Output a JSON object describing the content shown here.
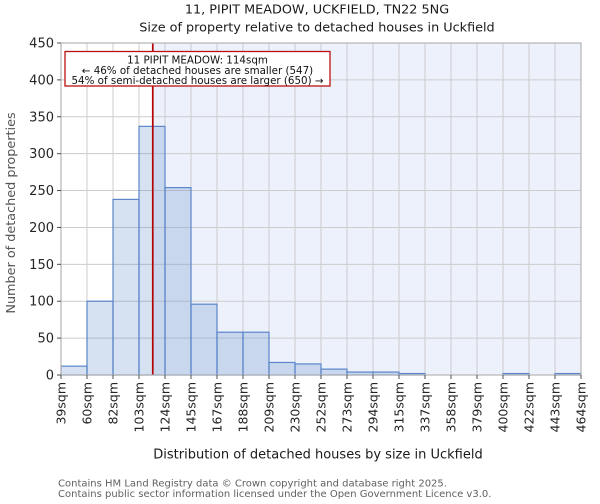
{
  "chart_data": {
    "type": "bar",
    "subtype": "histogram",
    "title": "11, PIPIT MEADOW, UCKFIELD, TN22 5NG",
    "subtitle": "Size of property relative to detached houses in Uckfield",
    "xlabel": "Distribution of detached houses by size in Uckfield",
    "ylabel": "Number of detached properties",
    "ylim": [
      0,
      450
    ],
    "y_tick_values": [
      0,
      50,
      100,
      150,
      200,
      250,
      300,
      350,
      400,
      450
    ],
    "grid": true,
    "bin_edges_sqm": [
      39,
      60,
      82,
      103,
      124,
      145,
      167,
      188,
      209,
      230,
      252,
      273,
      294,
      315,
      337,
      358,
      379,
      400,
      422,
      443,
      464
    ],
    "x_tick_labels": [
      "39sqm",
      "60sqm",
      "82sqm",
      "103sqm",
      "124sqm",
      "145sqm",
      "167sqm",
      "188sqm",
      "209sqm",
      "230sqm",
      "252sqm",
      "273sqm",
      "294sqm",
      "315sqm",
      "337sqm",
      "358sqm",
      "379sqm",
      "400sqm",
      "422sqm",
      "443sqm",
      "464sqm"
    ],
    "values": [
      12,
      100,
      238,
      337,
      254,
      96,
      58,
      58,
      17,
      15,
      8,
      4,
      4,
      2,
      0,
      0,
      0,
      2,
      0,
      2
    ],
    "marker": {
      "value_sqm": 114,
      "color": "#b40000"
    },
    "annotation": {
      "line1": "11 PIPIT MEADOW: 114sqm",
      "line2": "← 46% of detached houses are smaller (547)",
      "line3": "54% of semi-detached houses are larger (650) →"
    },
    "colors": {
      "bar_fill": "rgba(91,134,201,0.25)",
      "bar_edge": "#5b86c9",
      "marker_line": "#b40000",
      "shade_right_of_marker": "#edf1fb",
      "grid": "#cccccc",
      "spine": "#b3b3b3",
      "annotation_border": "#bb1111",
      "annotation_bg": "#ffffff"
    },
    "legend": null
  },
  "footer": {
    "line1": "Contains HM Land Registry data © Crown copyright and database right 2025.",
    "line2": "Contains public sector information licensed under the Open Government Licence v3.0."
  }
}
